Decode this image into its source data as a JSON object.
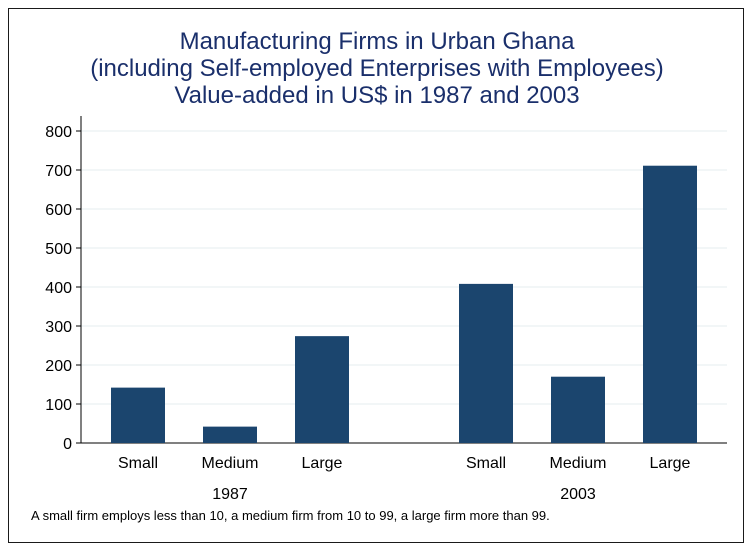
{
  "chart_data": {
    "type": "bar",
    "title": "Manufacturing Firms in Urban Ghana",
    "subtitle_lines": [
      "(including Self-employed Enterprises with Employees)",
      "Value-added in US$ in 1987 and 2003"
    ],
    "groups": [
      {
        "label": "1987",
        "categories": [
          "Small",
          "Medium",
          "Large"
        ],
        "values": [
          142,
          42,
          274
        ]
      },
      {
        "label": "2003",
        "categories": [
          "Small",
          "Medium",
          "Large"
        ],
        "values": [
          408,
          170,
          711
        ]
      }
    ],
    "ylim": [
      0,
      800
    ],
    "yticks": [
      0,
      100,
      200,
      300,
      400,
      500,
      600,
      700,
      800
    ],
    "grid": true,
    "bar_color": "#1b456e",
    "title_color": "#1a2f6b",
    "note": "A small firm employs less than 10, a medium firm from 10 to 99, a large firm more than 99."
  }
}
